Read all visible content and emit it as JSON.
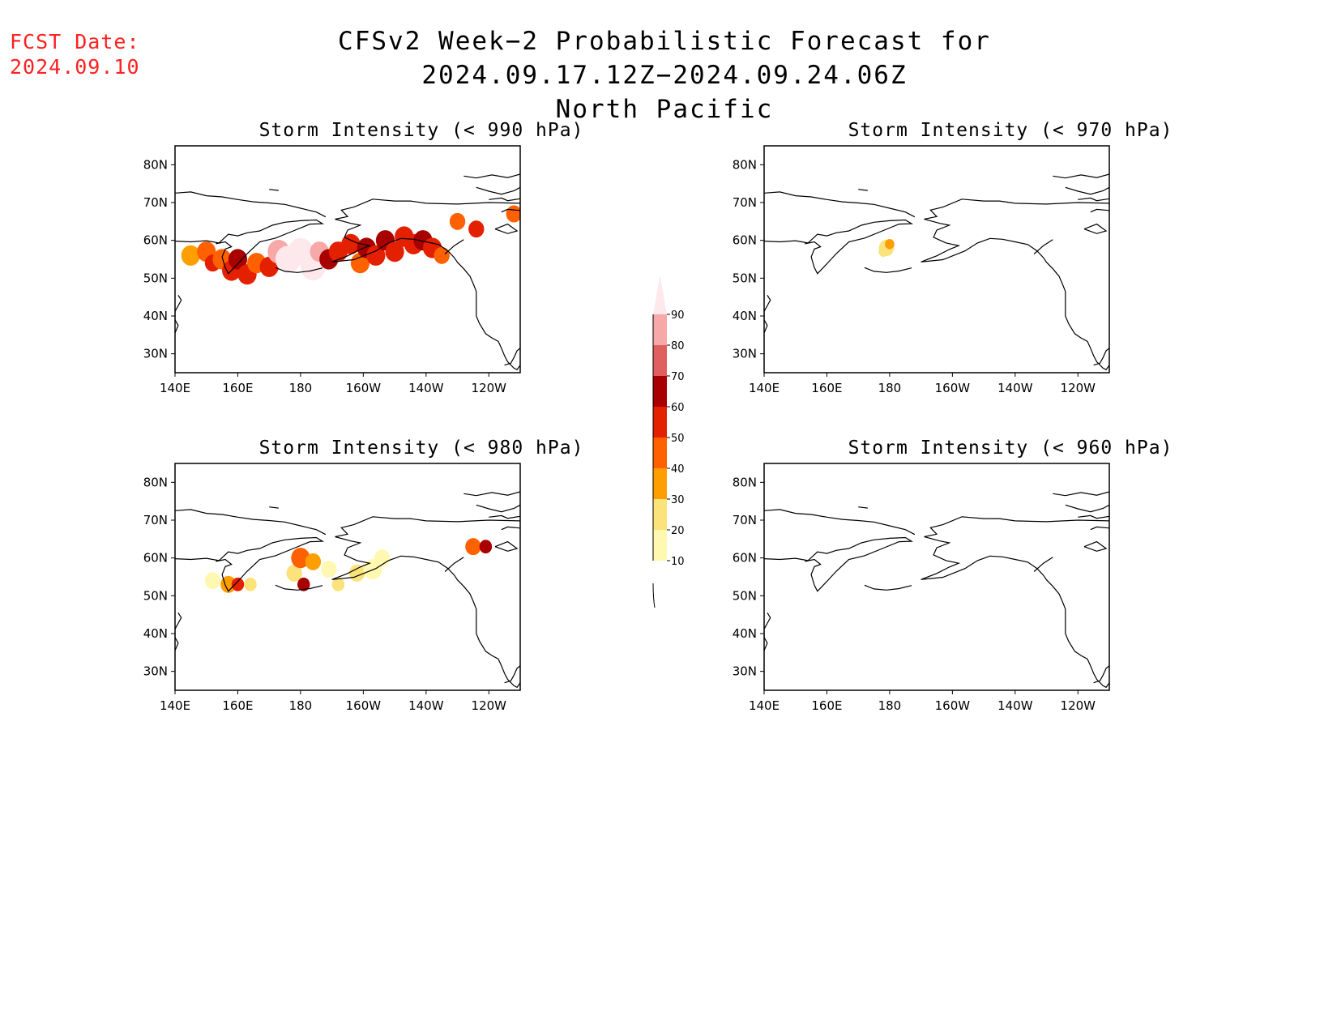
{
  "header": {
    "fcst_label": "FCST Date:",
    "fcst_date": "2024.09.10",
    "title": "CFSv2 Week−2 Probabilistic Forecast for 2024.09.17.12Z−2024.09.24.06Z",
    "region": "North Pacific"
  },
  "axes": {
    "lon_labels": [
      "140E",
      "160E",
      "180",
      "160W",
      "140W",
      "120W"
    ],
    "lat_labels": [
      "80N",
      "70N",
      "60N",
      "50N",
      "40N",
      "30N"
    ]
  },
  "panels": [
    {
      "id": "p990",
      "title": "Storm Intensity (< 990 hPa)",
      "has_data": true
    },
    {
      "id": "p970",
      "title": "Storm Intensity (< 970 hPa)",
      "has_data": true
    },
    {
      "id": "p980",
      "title": "Storm Intensity (< 980 hPa)",
      "has_data": true
    },
    {
      "id": "p960",
      "title": "Storm Intensity (< 960 hPa)",
      "has_data": false
    }
  ],
  "colorbar": {
    "levels": [
      "10",
      "20",
      "30",
      "40",
      "50",
      "60",
      "70",
      "80",
      "90"
    ],
    "colors": [
      "#fff8b0",
      "#fbe27a",
      "#ff9e00",
      "#ff6000",
      "#e32000",
      "#a80000",
      "#e06060",
      "#f7a8a8",
      "#fde8ec"
    ]
  },
  "colors": {
    "fcst_date": "#ff2020",
    "coastline": "#000000"
  }
}
